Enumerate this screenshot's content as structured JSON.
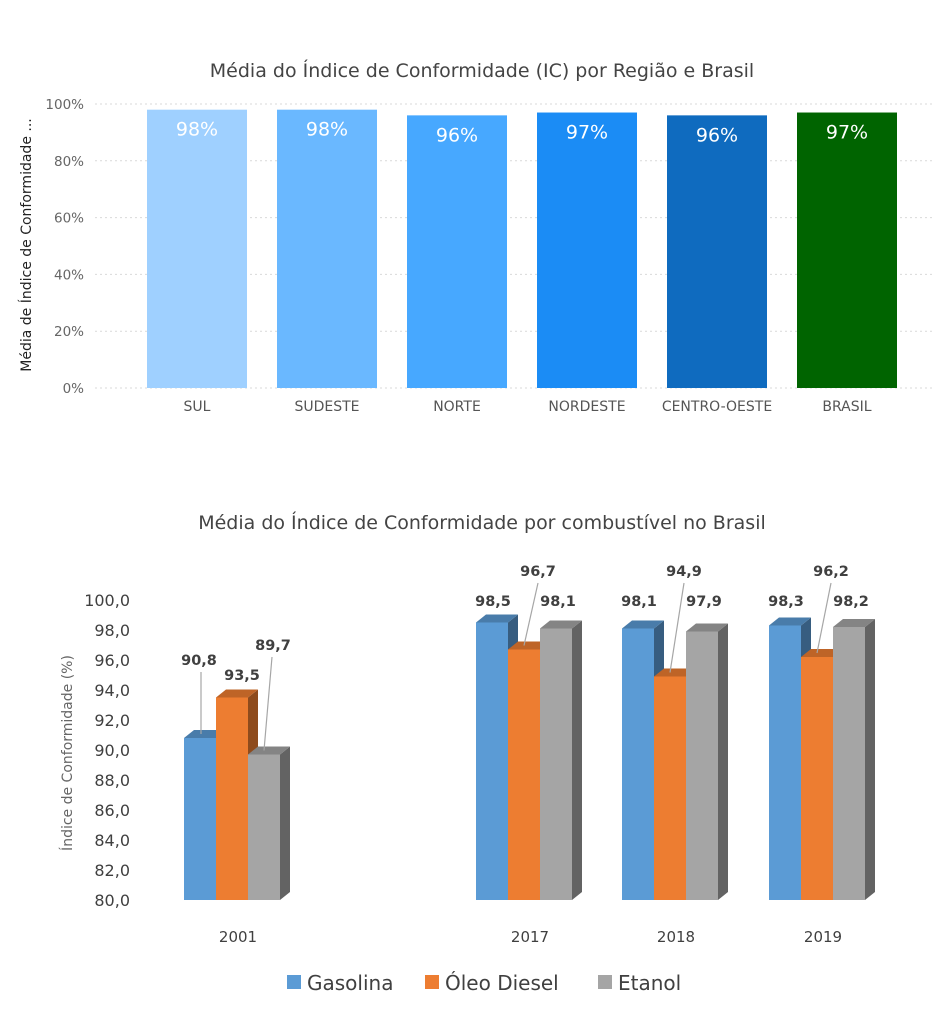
{
  "chart_data": [
    {
      "type": "bar",
      "title": "Média do Índice de Conformidade (IC) por Região e Brasil",
      "ylabel": "Média de Índice de Conformidade ...",
      "xlabel": "",
      "categories": [
        "SUL",
        "SUDESTE",
        "NORTE",
        "NORDESTE",
        "CENTRO-OESTE",
        "BRASIL"
      ],
      "values": [
        98,
        98,
        96,
        97,
        96,
        97
      ],
      "data_labels": [
        "98%",
        "98%",
        "96%",
        "97%",
        "96%",
        "97%"
      ],
      "colors": [
        "#9fd0ff",
        "#6ab8ff",
        "#47a8ff",
        "#1b8cf5",
        "#0f6bbf",
        "#006400"
      ],
      "ylim": [
        0,
        100
      ],
      "yticks": [
        0,
        20,
        40,
        60,
        80,
        100
      ],
      "ytick_labels": [
        "0%",
        "20%",
        "40%",
        "60%",
        "80%",
        "100%"
      ],
      "grid": true,
      "legend": "none"
    },
    {
      "type": "bar",
      "title": "Média do Índice de Conformidade por combustível no Brasil",
      "ylabel": "Índice de Conformidade (%)",
      "xlabel": "",
      "categories": [
        "2001",
        "2017",
        "2018",
        "2019"
      ],
      "series": [
        {
          "name": "Gasolina",
          "values": [
            90.8,
            98.5,
            98.1,
            98.3
          ],
          "labels": [
            "90,8",
            "98,5",
            "98,1",
            "98,3"
          ],
          "color": "#5b9bd5"
        },
        {
          "name": "Óleo Diesel",
          "values": [
            93.5,
            96.7,
            94.9,
            96.2
          ],
          "labels": [
            "93,5",
            "96,7",
            "94,9",
            "96,2"
          ],
          "color": "#ed7d31"
        },
        {
          "name": "Etanol",
          "values": [
            89.7,
            98.1,
            97.9,
            98.2
          ],
          "labels": [
            "89,7",
            "98,1",
            "97,9",
            "98,2"
          ],
          "color": "#a5a5a5"
        }
      ],
      "ylim": [
        80,
        100
      ],
      "yticks": [
        80,
        82,
        84,
        86,
        88,
        90,
        92,
        94,
        96,
        98,
        100
      ],
      "ytick_labels": [
        "80,0",
        "82,0",
        "84,0",
        "86,0",
        "88,0",
        "90,0",
        "92,0",
        "94,0",
        "96,0",
        "98,0",
        "100,0"
      ],
      "grid": false,
      "legend": "bottom"
    }
  ]
}
